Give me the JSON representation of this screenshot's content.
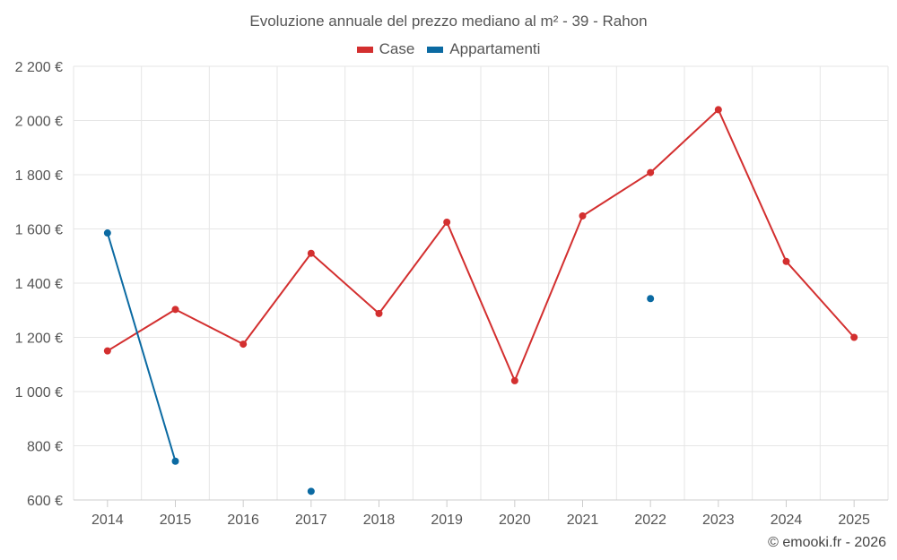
{
  "chart_data": {
    "type": "line",
    "title": "Evoluzione annuale del prezzo mediano al m² - 39 - Rahon",
    "xlabel": "",
    "ylabel": "",
    "categories": [
      "2014",
      "2015",
      "2016",
      "2017",
      "2018",
      "2019",
      "2020",
      "2021",
      "2022",
      "2023",
      "2024",
      "2025"
    ],
    "ylim": [
      600,
      2200
    ],
    "yticks": [
      600,
      800,
      1000,
      1200,
      1400,
      1600,
      1800,
      2000,
      2200
    ],
    "ytick_labels": [
      "600 €",
      "800 €",
      "1 000 €",
      "1 200 €",
      "1 400 €",
      "1 600 €",
      "1 800 €",
      "2 000 €",
      "2 200 €"
    ],
    "grid": true,
    "legend_position": "top-center",
    "series": [
      {
        "name": "Case",
        "color": "#d32f2f",
        "values": [
          1150,
          1303,
          1175,
          1510,
          1288,
          1625,
          1040,
          1648,
          1808,
          2040,
          1480,
          1200
        ]
      },
      {
        "name": "Appartamenti",
        "color": "#0b6aa2",
        "values": [
          1585,
          743,
          null,
          632,
          null,
          null,
          null,
          null,
          1343,
          null,
          null,
          null
        ]
      }
    ]
  },
  "credit": "© emooki.fr - 2026"
}
